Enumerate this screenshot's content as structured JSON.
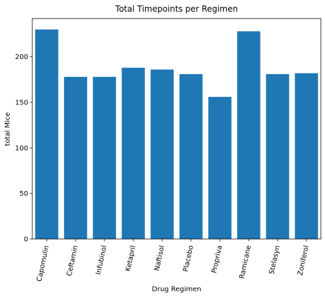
{
  "chart_data": {
    "type": "bar",
    "title": "Total Timepoints per Regimen",
    "xlabel": "Drug Regimen",
    "ylabel": "total Mice",
    "categories": [
      "Capomulin",
      "Ceftamin",
      "Infubinol",
      "Ketapril",
      "Naftisol",
      "Placebo",
      "Propriva",
      "Ramicane",
      "Stelasyn",
      "Zoniferol"
    ],
    "values": [
      230,
      178,
      178,
      188,
      186,
      181,
      156,
      228,
      181,
      182
    ],
    "ylim": [
      0,
      242
    ],
    "yticks": [
      0,
      50,
      100,
      150,
      200
    ],
    "grid": false,
    "bar_color": "#1f77b4"
  }
}
